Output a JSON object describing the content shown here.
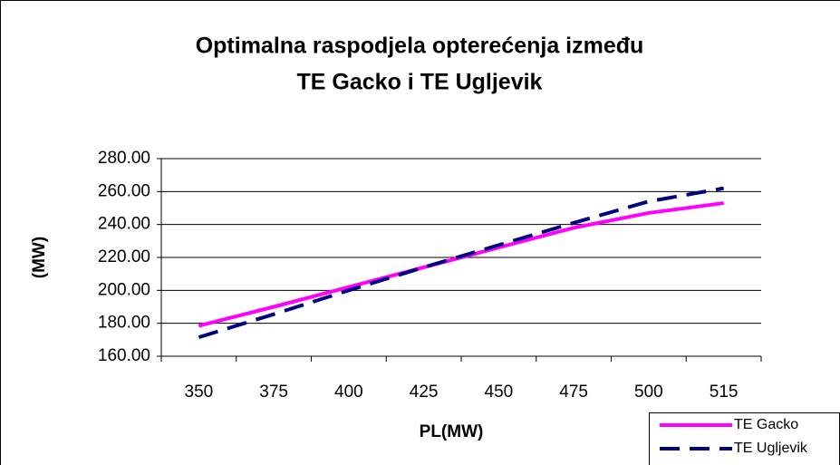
{
  "chart_data": {
    "type": "line",
    "title": [
      "Optimalna raspodjela opterećenja između",
      "TE Gacko i TE Ugljevik"
    ],
    "xlabel": "PL(MW)",
    "ylabel": "(MW)",
    "categories": [
      "350",
      "375",
      "400",
      "425",
      "450",
      "475",
      "500",
      "515"
    ],
    "series": [
      {
        "name": "TE Gacko",
        "color": "#ff00ff",
        "dash": false,
        "values": [
          178.5,
          190,
          202,
          214,
          226,
          238,
          247,
          253
        ]
      },
      {
        "name": "TE Ugljevik",
        "color": "#000080",
        "dash": true,
        "values": [
          171.5,
          185.5,
          200,
          214,
          227.5,
          241,
          254,
          262
        ]
      }
    ],
    "ylim": [
      160,
      280
    ],
    "yticks": [
      {
        "value": 160,
        "label": "160.00"
      },
      {
        "value": 180,
        "label": "180.00"
      },
      {
        "value": 200,
        "label": "200.00"
      },
      {
        "value": 220,
        "label": "220.00"
      },
      {
        "value": 240,
        "label": "240.00"
      },
      {
        "value": 260,
        "label": "260.00"
      },
      {
        "value": 280,
        "label": "280.00"
      }
    ],
    "grid": true,
    "legend": "bottom-right"
  }
}
